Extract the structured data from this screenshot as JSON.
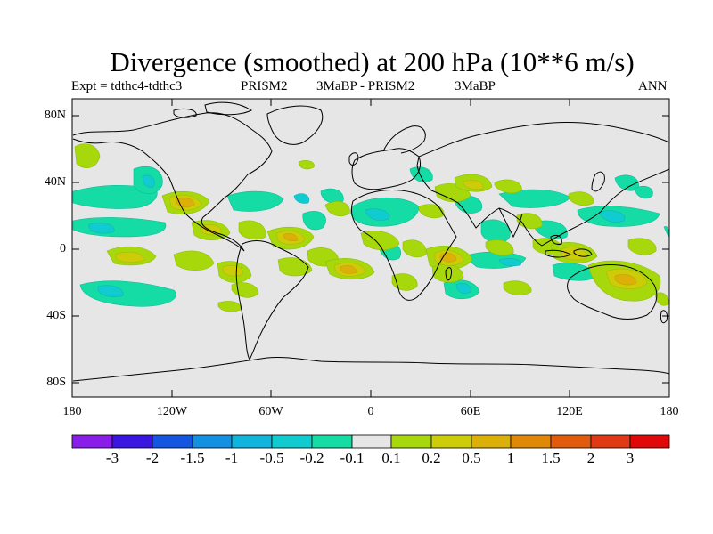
{
  "title": "Divergence (smoothed) at 200 hPa (10**6 m/s)",
  "subtitle": {
    "left": "Expt = tdthc4-tdthc3",
    "center_a": "PRISM2",
    "center_b": "3MaBP - PRISM2",
    "center_c": "3MaBP",
    "right": "ANN"
  },
  "axes": {
    "y_ticks": [
      "80N",
      "40N",
      "0",
      "40S",
      "80S"
    ],
    "x_ticks": [
      "180",
      "120W",
      "60W",
      "0",
      "60E",
      "120E",
      "180"
    ]
  },
  "colorbar": {
    "labels": [
      "-3",
      "-2",
      "-1.5",
      "-1",
      "-0.5",
      "-0.2",
      "-0.1",
      "0.1",
      "0.2",
      "0.5",
      "1",
      "1.5",
      "2",
      "3"
    ],
    "colors": [
      "#8a1ee8",
      "#3a16e0",
      "#1456e0",
      "#1490e0",
      "#10b4dc",
      "#10ccd0",
      "#14dca4",
      "#e6e6e6",
      "#a6d80c",
      "#cccc08",
      "#dcb008",
      "#e08808",
      "#e05c0c",
      "#e03a14",
      "#e00808"
    ]
  },
  "colors": {
    "background": "#e6e6e6",
    "land_outline": "#000000"
  }
}
